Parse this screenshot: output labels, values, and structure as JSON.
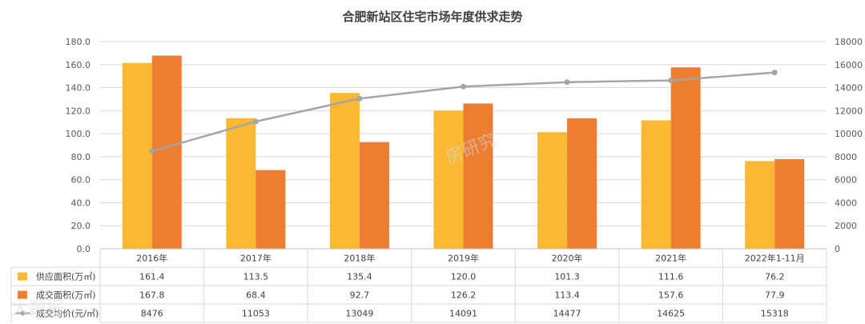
{
  "chart_data": {
    "type": "bar",
    "title": "合肥新站区住宅市场年度供求走势",
    "categories": [
      "2016年",
      "2017年",
      "2018年",
      "2019年",
      "2020年",
      "2021年",
      "2022年1-11月"
    ],
    "series": [
      {
        "name": "供应面积(万㎡)",
        "kind": "bar",
        "axis": "left",
        "color": "#FBB832",
        "values": [
          161.4,
          113.5,
          135.4,
          120.0,
          101.3,
          111.6,
          76.2
        ],
        "labels": [
          "161.4",
          "113.5",
          "135.4",
          "120.0",
          "101.3",
          "111.6",
          "76.2"
        ]
      },
      {
        "name": "成交面积(万㎡)",
        "kind": "bar",
        "axis": "left",
        "color": "#ED7D31",
        "values": [
          167.8,
          68.4,
          92.7,
          126.2,
          113.4,
          157.6,
          77.9
        ],
        "labels": [
          "167.8",
          "68.4",
          "92.7",
          "126.2",
          "113.4",
          "157.6",
          "77.9"
        ]
      },
      {
        "name": "成交均价(元/㎡)",
        "kind": "line",
        "axis": "right",
        "color": "#A5A5A5",
        "values": [
          8476,
          11053,
          13049,
          14091,
          14477,
          14625,
          15318
        ],
        "labels": [
          "8476",
          "11053",
          "13049",
          "14091",
          "14477",
          "14625",
          "15318"
        ]
      }
    ],
    "y_left": {
      "min": 0,
      "max": 180,
      "step": 20,
      "ticks": [
        "0.0",
        "20.0",
        "40.0",
        "60.0",
        "80.0",
        "100.0",
        "120.0",
        "140.0",
        "160.0",
        "180.0"
      ]
    },
    "y_right": {
      "min": 0,
      "max": 18000,
      "step": 2000,
      "ticks": [
        "0",
        "2000",
        "4000",
        "6000",
        "8000",
        "10000",
        "12000",
        "14000",
        "16000",
        "18000"
      ]
    },
    "grid": true,
    "legend": "data-table"
  },
  "watermarks": [
    "房研究",
    "大数据"
  ]
}
